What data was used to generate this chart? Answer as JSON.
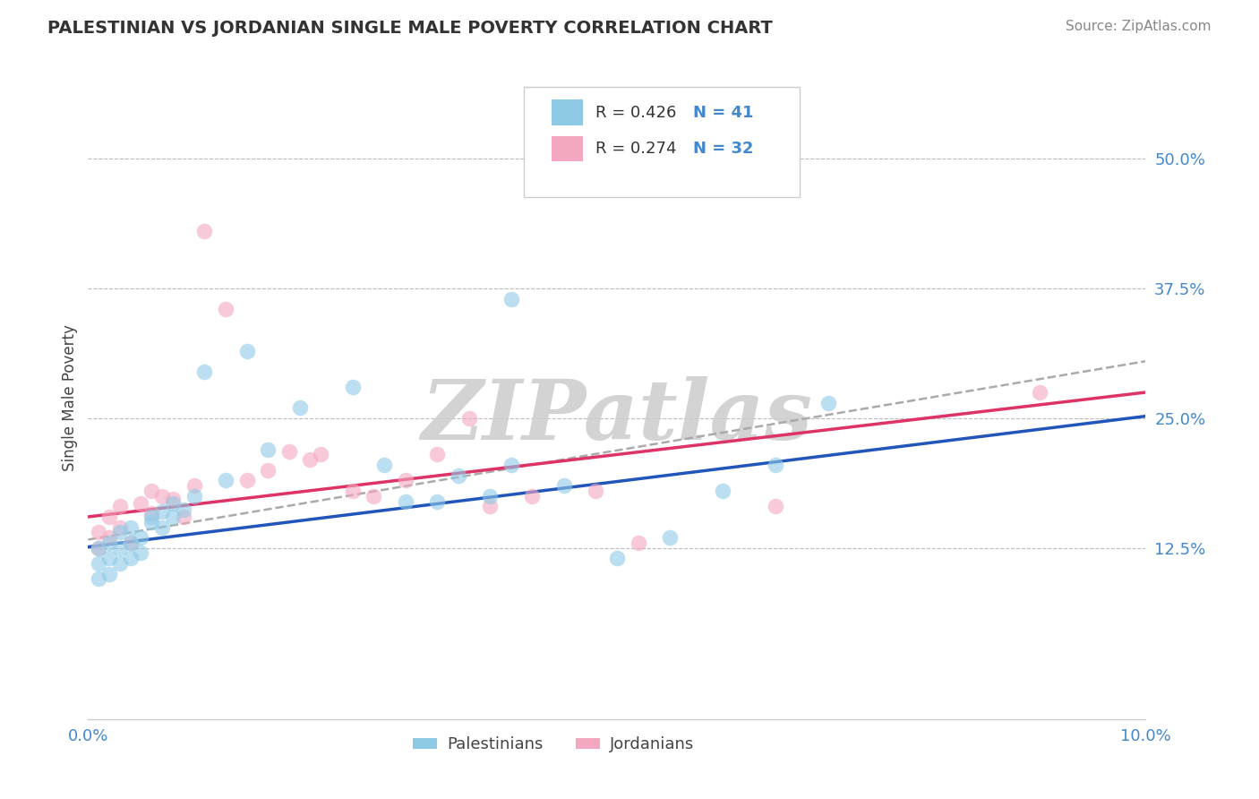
{
  "title": "PALESTINIAN VS JORDANIAN SINGLE MALE POVERTY CORRELATION CHART",
  "source": "Source: ZipAtlas.com",
  "ylabel": "Single Male Poverty",
  "ytick_values": [
    0.125,
    0.25,
    0.375,
    0.5
  ],
  "ytick_labels": [
    "12.5%",
    "25.0%",
    "37.5%",
    "50.0%"
  ],
  "xlim": [
    0.0,
    0.1
  ],
  "ylim": [
    -0.04,
    0.58
  ],
  "color_blue": "#8ecae6",
  "color_pink": "#f4a8c0",
  "line_blue": "#2255bb",
  "line_pink": "#dd3366",
  "line_dashed_color": "#aaaaaa",
  "grid_color": "#bbbbbb",
  "background": "#ffffff",
  "legend_R_blue": "R = 0.426",
  "legend_N_blue": "N = 41",
  "legend_R_pink": "R = 0.274",
  "legend_N_pink": "N = 32",
  "label_blue": "Palestinians",
  "label_pink": "Jordanians",
  "watermark": "ZIPatlas",
  "palestinians_x": [
    0.001,
    0.001,
    0.001,
    0.002,
    0.002,
    0.002,
    0.003,
    0.003,
    0.003,
    0.004,
    0.004,
    0.004,
    0.005,
    0.005,
    0.006,
    0.006,
    0.007,
    0.007,
    0.008,
    0.008,
    0.009,
    0.01,
    0.011,
    0.013,
    0.015,
    0.017,
    0.02,
    0.025,
    0.028,
    0.03,
    0.033,
    0.035,
    0.038,
    0.04,
    0.045,
    0.05,
    0.055,
    0.06,
    0.065,
    0.07,
    0.04
  ],
  "palestinians_y": [
    0.095,
    0.11,
    0.125,
    0.1,
    0.115,
    0.13,
    0.11,
    0.125,
    0.14,
    0.115,
    0.13,
    0.145,
    0.12,
    0.135,
    0.15,
    0.155,
    0.145,
    0.16,
    0.155,
    0.168,
    0.162,
    0.175,
    0.295,
    0.19,
    0.315,
    0.22,
    0.26,
    0.28,
    0.205,
    0.17,
    0.17,
    0.195,
    0.175,
    0.205,
    0.185,
    0.115,
    0.135,
    0.18,
    0.205,
    0.265,
    0.365
  ],
  "jordanians_x": [
    0.001,
    0.001,
    0.002,
    0.002,
    0.003,
    0.003,
    0.004,
    0.005,
    0.006,
    0.006,
    0.007,
    0.008,
    0.009,
    0.01,
    0.011,
    0.013,
    0.015,
    0.017,
    0.019,
    0.021,
    0.022,
    0.025,
    0.027,
    0.03,
    0.033,
    0.036,
    0.038,
    0.042,
    0.048,
    0.052,
    0.065,
    0.09
  ],
  "jordanians_y": [
    0.125,
    0.14,
    0.135,
    0.155,
    0.145,
    0.165,
    0.13,
    0.168,
    0.158,
    0.18,
    0.175,
    0.172,
    0.155,
    0.185,
    0.43,
    0.355,
    0.19,
    0.2,
    0.218,
    0.21,
    0.215,
    0.18,
    0.175,
    0.19,
    0.215,
    0.25,
    0.165,
    0.175,
    0.18,
    0.13,
    0.165,
    0.275
  ]
}
